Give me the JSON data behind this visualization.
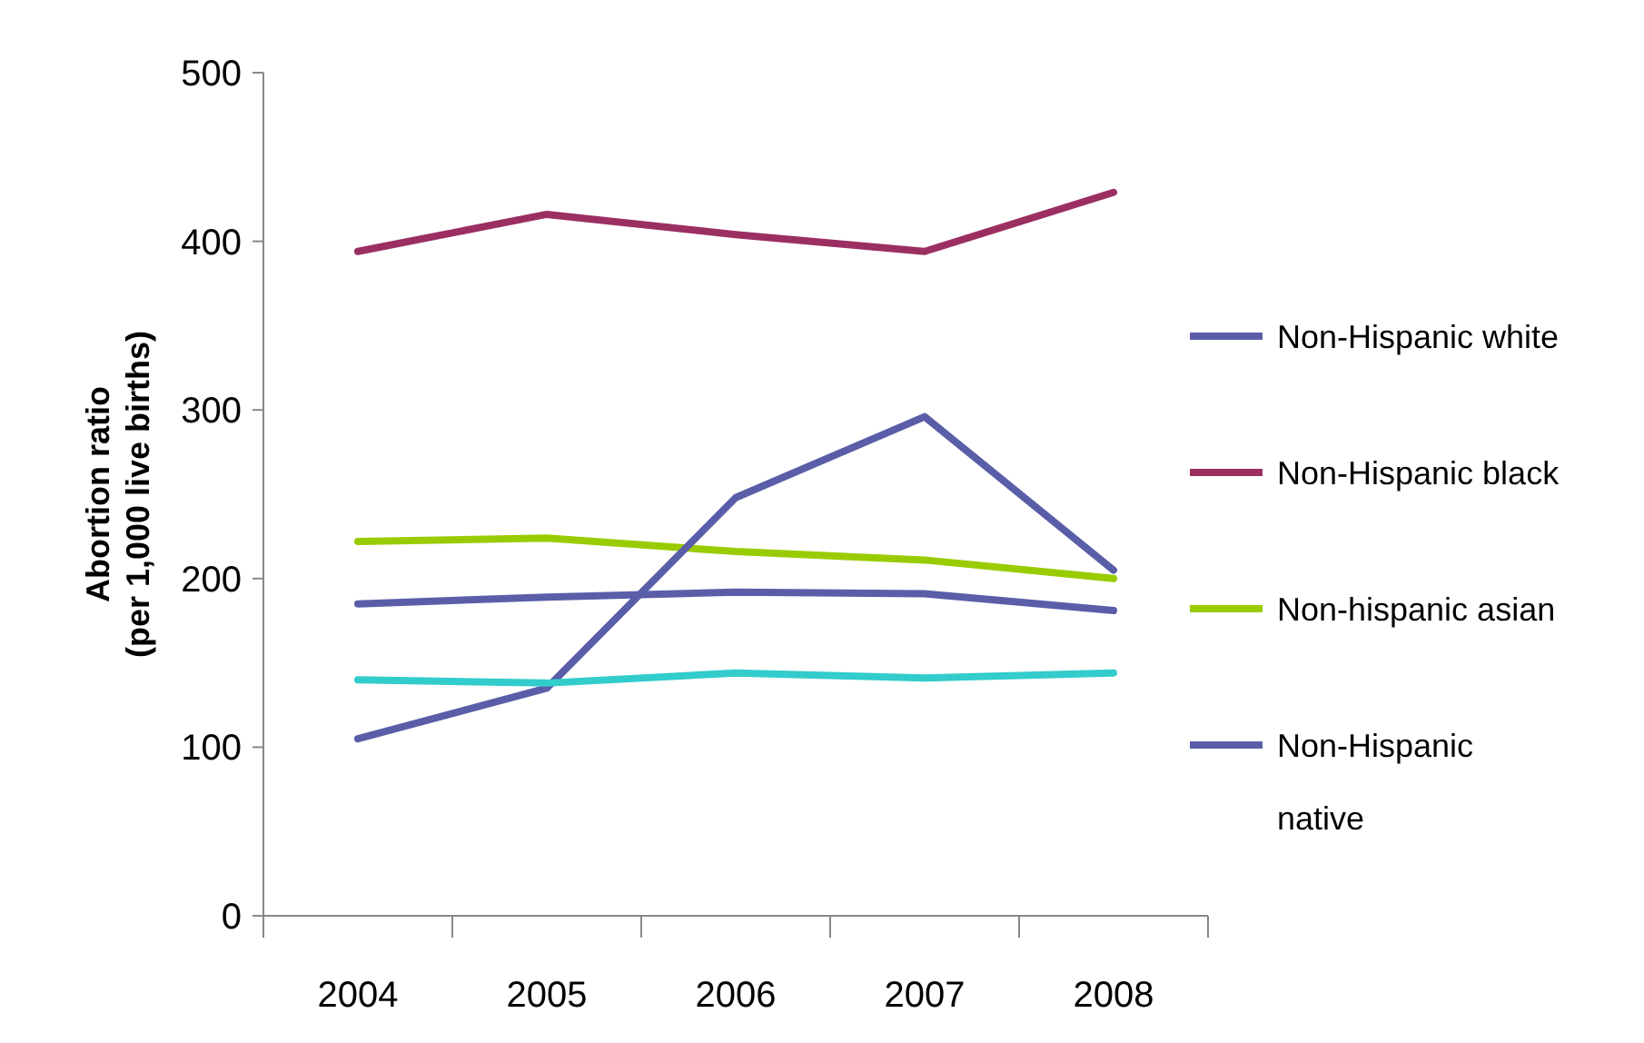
{
  "chart_data": {
    "type": "line",
    "ylabel": "Abortion ratio\n(per 1,000 live births)",
    "categories": [
      "2004",
      "2005",
      "2006",
      "2007",
      "2008"
    ],
    "series": [
      {
        "name": "Non-Hispanic white",
        "color": "#5a5ea8",
        "values": [
          185,
          189,
          192,
          191,
          181
        ]
      },
      {
        "name": "Non-Hispanic black",
        "color": "#9b2f62",
        "values": [
          394,
          416,
          404,
          394,
          429
        ]
      },
      {
        "name": "Non-hispanic asian",
        "color": "#99cc00",
        "values": [
          222,
          224,
          216,
          211,
          200
        ]
      },
      {
        "name": "Non-Hispanic native",
        "color": "#5a5ea8",
        "values": [
          105,
          135,
          248,
          296,
          205
        ]
      },
      {
        "color": "#33cccc",
        "values": [
          140,
          138,
          144,
          141,
          144
        ]
      }
    ],
    "ylim": [
      0,
      500
    ],
    "yticks": [
      0,
      100,
      200,
      300,
      400,
      500
    ],
    "grid": false,
    "legend": "right",
    "marker": "none",
    "line_style": "solid"
  }
}
